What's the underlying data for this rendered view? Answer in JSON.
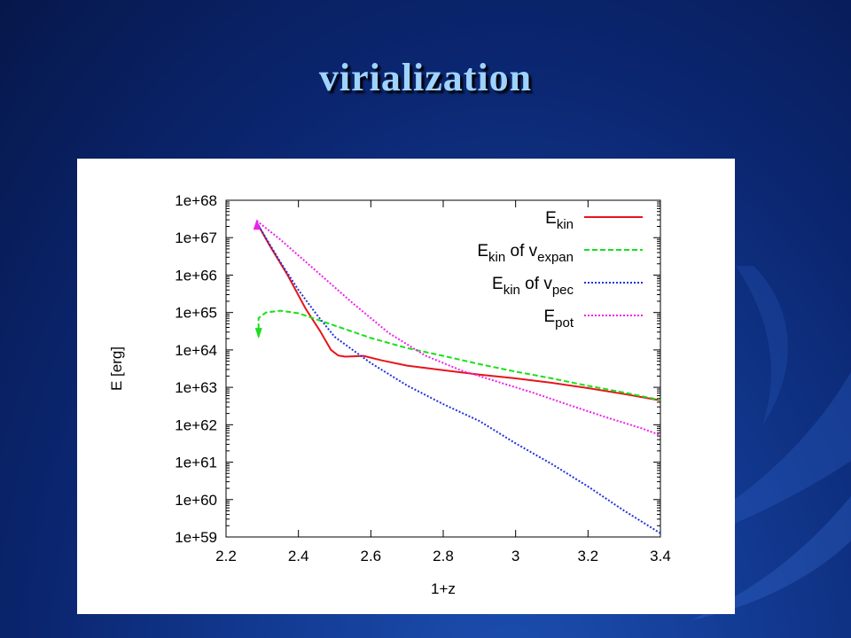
{
  "slide": {
    "title": "virialization"
  },
  "chart_data": {
    "type": "line",
    "xlabel": "1+z",
    "ylabel": "E [erg]",
    "xlim": [
      2.2,
      3.4
    ],
    "ylim_log10": [
      59,
      68
    ],
    "yscale": "log",
    "x_ticks": [
      "2.2",
      "2.4",
      "2.6",
      "2.8",
      "3",
      "3.2",
      "3.4"
    ],
    "y_ticks": [
      "1e+59",
      "1e+60",
      "1e+61",
      "1e+62",
      "1e+63",
      "1e+64",
      "1e+65",
      "1e+66",
      "1e+67",
      "1e+68"
    ],
    "legend_position": "top-right",
    "series": [
      {
        "legend": {
          "base": "E",
          "sub": "kin",
          "of": "",
          "var": "",
          "var_sub": ""
        },
        "color": "#e8141c",
        "dash": "solid",
        "points_log10": [
          [
            2.285,
            67.4
          ],
          [
            2.32,
            66.8
          ],
          [
            2.37,
            66.0
          ],
          [
            2.42,
            65.1
          ],
          [
            2.46,
            64.5
          ],
          [
            2.49,
            64.0
          ],
          [
            2.51,
            63.85
          ],
          [
            2.53,
            63.82
          ],
          [
            2.58,
            63.84
          ],
          [
            2.63,
            63.72
          ],
          [
            2.7,
            63.58
          ],
          [
            2.8,
            63.46
          ],
          [
            2.9,
            63.34
          ],
          [
            3.0,
            63.24
          ],
          [
            3.1,
            63.12
          ],
          [
            3.2,
            62.98
          ],
          [
            3.3,
            62.82
          ],
          [
            3.4,
            62.65
          ]
        ]
      },
      {
        "legend": {
          "base": "E",
          "sub": "kin",
          "of": " of ",
          "var": "v",
          "var_sub": "expan"
        },
        "color": "#18e018",
        "dash": "dashed",
        "points_log10": [
          [
            2.29,
            64.35
          ],
          [
            2.29,
            64.85
          ],
          [
            2.31,
            65.0
          ],
          [
            2.35,
            65.05
          ],
          [
            2.4,
            64.98
          ],
          [
            2.5,
            64.65
          ],
          [
            2.6,
            64.32
          ],
          [
            2.7,
            64.05
          ],
          [
            2.8,
            63.84
          ],
          [
            2.9,
            63.62
          ],
          [
            3.0,
            63.42
          ],
          [
            3.1,
            63.24
          ],
          [
            3.2,
            63.04
          ],
          [
            3.3,
            62.86
          ],
          [
            3.4,
            62.66
          ]
        ]
      },
      {
        "legend": {
          "base": "E",
          "sub": "kin",
          "of": " of ",
          "var": "v",
          "var_sub": "pec"
        },
        "color": "#2233dd",
        "dash": "dotted",
        "points_log10": [
          [
            2.285,
            67.4
          ],
          [
            2.35,
            66.35
          ],
          [
            2.4,
            65.6
          ],
          [
            2.45,
            64.95
          ],
          [
            2.5,
            64.35
          ],
          [
            2.55,
            64.0
          ],
          [
            2.6,
            63.65
          ],
          [
            2.7,
            63.05
          ],
          [
            2.8,
            62.55
          ],
          [
            2.9,
            62.1
          ],
          [
            3.0,
            61.5
          ],
          [
            3.1,
            60.95
          ],
          [
            3.2,
            60.35
          ],
          [
            3.3,
            59.7
          ],
          [
            3.4,
            59.1
          ]
        ]
      },
      {
        "legend": {
          "base": "E",
          "sub": "pot",
          "of": "",
          "var": "",
          "var_sub": ""
        },
        "color": "#ee22ee",
        "dash": "dotted",
        "points_log10": [
          [
            2.285,
            67.45
          ],
          [
            2.35,
            66.95
          ],
          [
            2.45,
            66.1
          ],
          [
            2.55,
            65.25
          ],
          [
            2.65,
            64.45
          ],
          [
            2.75,
            63.85
          ],
          [
            2.85,
            63.45
          ],
          [
            2.95,
            63.15
          ],
          [
            3.05,
            62.85
          ],
          [
            3.15,
            62.52
          ],
          [
            3.25,
            62.2
          ],
          [
            3.35,
            61.9
          ],
          [
            3.4,
            61.72
          ]
        ]
      }
    ]
  }
}
